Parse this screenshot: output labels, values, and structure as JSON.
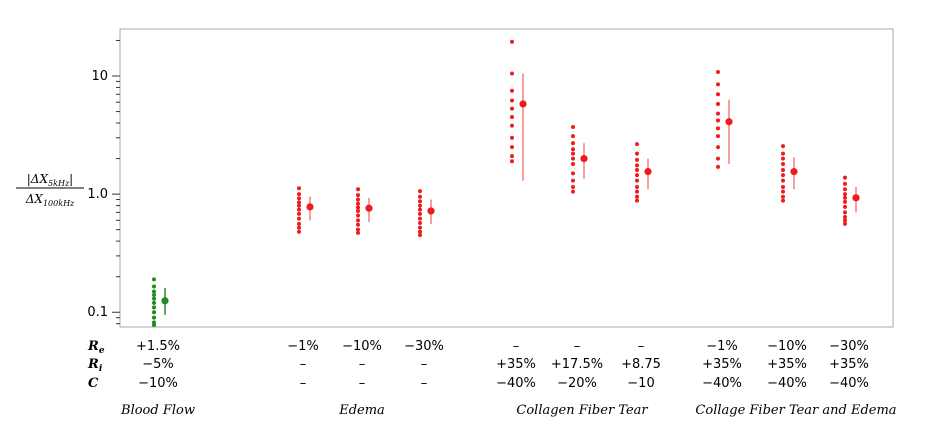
{
  "chart_data": {
    "type": "scatter",
    "yscale": "log",
    "ylim": [
      0.075,
      25
    ],
    "yticks": [
      {
        "value": 0.1,
        "label": "0.1"
      },
      {
        "value": 1.0,
        "label": "1.0"
      },
      {
        "value": 10,
        "label": "10"
      }
    ],
    "ylabel_numerator": "|ΔX",
    "ylabel_numerator_sub": "5kHz",
    "ylabel_numerator_end": "|",
    "ylabel_denominator": "ΔX",
    "ylabel_denominator_sub": "100kHz",
    "row_labels": [
      {
        "main": "R",
        "sub": "e"
      },
      {
        "main": "R",
        "sub": "i"
      },
      {
        "main": "C",
        "sub": ""
      }
    ],
    "groups": [
      {
        "name": "Blood Flow",
        "label_x": 158
      },
      {
        "name": "Edema",
        "label_x": 362
      },
      {
        "name": "Collagen Fiber Tear",
        "label_x": 582
      },
      {
        "name": "Collage Fiber Tear and Edema",
        "label_x": 796
      }
    ],
    "colors": {
      "red": "#ee1c1c",
      "green": "#1f8a1f",
      "red_bar": "#f08080",
      "green_bar": "#2e8b2e"
    },
    "categories": [
      {
        "Re": "+1.5%",
        "Ri": "−5%",
        "C": "−10%",
        "color": "green",
        "points": [
          0.19,
          0.165,
          0.15,
          0.14,
          0.13,
          0.12,
          0.11,
          0.1,
          0.09,
          0.082,
          0.078
        ],
        "mean": 0.125,
        "err": [
          0.095,
          0.16
        ]
      },
      {
        "Re": "−1%",
        "Ri": "–",
        "C": "–",
        "color": "red",
        "points": [
          1.12,
          1.0,
          0.92,
          0.85,
          0.8,
          0.74,
          0.68,
          0.62,
          0.56,
          0.52,
          0.48
        ],
        "mean": 0.78,
        "err": [
          0.6,
          0.95
        ]
      },
      {
        "Re": "−10%",
        "Ri": "–",
        "C": "–",
        "color": "red",
        "points": [
          1.1,
          0.98,
          0.9,
          0.83,
          0.77,
          0.72,
          0.66,
          0.6,
          0.55,
          0.5,
          0.47
        ],
        "mean": 0.76,
        "err": [
          0.58,
          0.93
        ]
      },
      {
        "Re": "−30%",
        "Ri": "–",
        "C": "–",
        "color": "red",
        "points": [
          1.06,
          0.95,
          0.87,
          0.8,
          0.74,
          0.68,
          0.62,
          0.57,
          0.52,
          0.48,
          0.45
        ],
        "mean": 0.72,
        "err": [
          0.56,
          0.9
        ]
      },
      {
        "Re": "–",
        "Ri": "+35%",
        "C": "−40%",
        "color": "red",
        "points": [
          19.5,
          10.5,
          7.5,
          6.2,
          5.3,
          4.5,
          3.8,
          3.0,
          2.5,
          2.1,
          1.9
        ],
        "mean": 5.8,
        "err": [
          1.3,
          10.5
        ]
      },
      {
        "Re": "–",
        "Ri": "+17.5%",
        "C": "−20%",
        "color": "red",
        "points": [
          3.7,
          3.1,
          2.7,
          2.4,
          2.2,
          2.0,
          1.8,
          1.5,
          1.3,
          1.15,
          1.05
        ],
        "mean": 2.0,
        "err": [
          1.35,
          2.7
        ]
      },
      {
        "Re": "–",
        "Ri": "+8.75",
        "C": "−10",
        "color": "red",
        "points": [
          2.65,
          2.2,
          1.95,
          1.75,
          1.6,
          1.45,
          1.3,
          1.15,
          1.05,
          0.95,
          0.88
        ],
        "mean": 1.55,
        "err": [
          1.1,
          2.0
        ]
      },
      {
        "Re": "−1%",
        "Ri": "+35%",
        "C": "−40%",
        "color": "red",
        "points": [
          10.8,
          8.5,
          7.0,
          5.8,
          4.8,
          4.2,
          3.6,
          3.1,
          2.5,
          2.0,
          1.7
        ],
        "mean": 4.1,
        "err": [
          1.8,
          6.3
        ]
      },
      {
        "Re": "−10%",
        "Ri": "+35%",
        "C": "−40%",
        "color": "red",
        "points": [
          2.55,
          2.2,
          2.0,
          1.8,
          1.6,
          1.45,
          1.3,
          1.15,
          1.05,
          0.95,
          0.88
        ],
        "mean": 1.55,
        "err": [
          1.1,
          2.05
        ]
      },
      {
        "Re": "−30%",
        "Ri": "+35%",
        "C": "−40%",
        "color": "red",
        "points": [
          1.38,
          1.22,
          1.1,
          1.0,
          0.93,
          0.86,
          0.78,
          0.7,
          0.64,
          0.6,
          0.56
        ],
        "mean": 0.93,
        "err": [
          0.7,
          1.15
        ]
      }
    ]
  }
}
